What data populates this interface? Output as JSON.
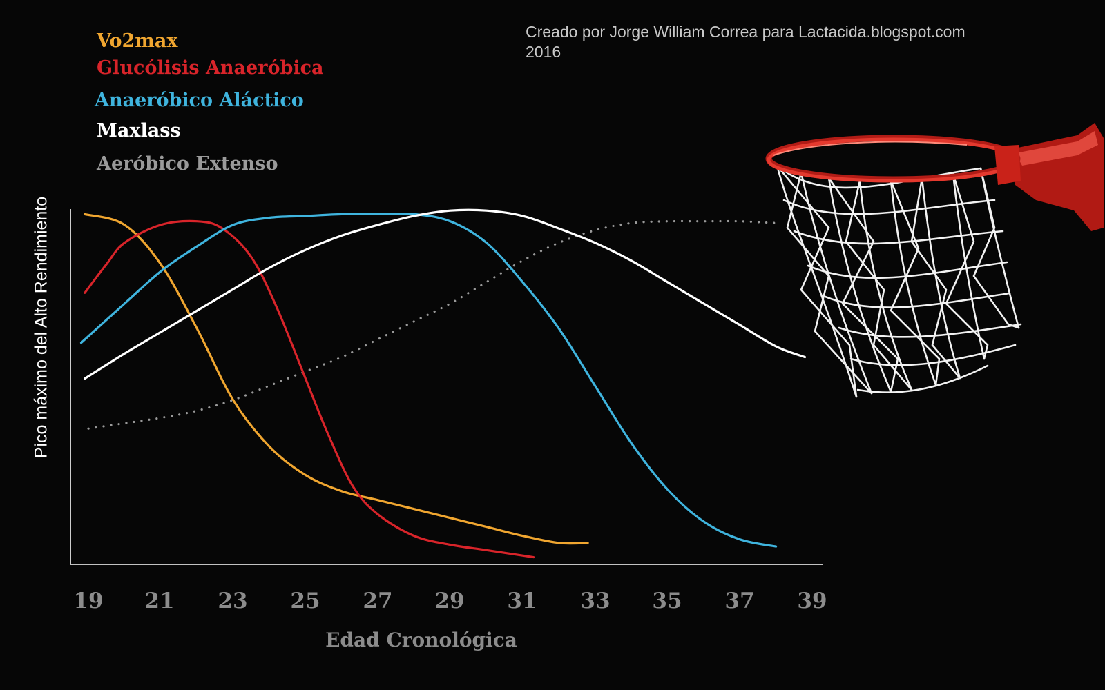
{
  "credit": {
    "line1": "Creado por  Jorge William Correa para Lactacida.blogspot.com",
    "line2": "2016"
  },
  "colors": {
    "background": "#060606",
    "vo2max": "#f0a630",
    "glucolisis": "#d8242a",
    "alactico": "#3fb4de",
    "maxlass": "#ffffff",
    "aerobico": "#9a9a9a",
    "axis": "#ffffff",
    "tick_text": "#8c8c8c"
  },
  "chart_data": {
    "type": "line",
    "xlabel": "Edad Cronológica",
    "ylabel": "Pico máximo del Alto Rendimiento",
    "x_ticks": [
      "19",
      "21",
      "23",
      "25",
      "27",
      "29",
      "31",
      "33",
      "35",
      "37",
      "39"
    ],
    "xlim": [
      18.5,
      39.5
    ],
    "ylim": [
      0,
      100
    ],
    "grid": false,
    "legend_position": "top-left",
    "series": [
      {
        "name": "Vo2max",
        "color_key": "vo2max",
        "style": "solid",
        "x": [
          18.9,
          20.0,
          21.0,
          22.0,
          23.0,
          24.0,
          25.0,
          26.0,
          27.0,
          28.0,
          29.0,
          30.0,
          31.0,
          32.0,
          32.8
        ],
        "y": [
          98,
          95,
          84,
          66,
          46,
          33,
          25,
          20.5,
          18,
          15.5,
          13,
          10.5,
          8,
          6,
          6
        ]
      },
      {
        "name": "Glucólisis Anaeróbica",
        "color_key": "glucolisis",
        "style": "solid",
        "x": [
          18.9,
          19.5,
          20.0,
          21.0,
          22.0,
          22.7,
          23.5,
          24.2,
          25.0,
          25.6,
          26.3,
          27.0,
          28.0,
          29.0,
          30.0,
          31.3
        ],
        "y": [
          76,
          84,
          90,
          95,
          96,
          94,
          86,
          72,
          52,
          37,
          22,
          14,
          8,
          5.5,
          4,
          2
        ]
      },
      {
        "name": "Anaeróbico Aláctico",
        "color_key": "alactico",
        "style": "solid",
        "x": [
          18.8,
          20.0,
          21.0,
          22.0,
          23.0,
          24.0,
          25.0,
          26.0,
          27.0,
          28.0,
          29.0,
          30.0,
          31.0,
          32.0,
          33.0,
          34.0,
          35.0,
          36.0,
          37.0,
          38.0
        ],
        "y": [
          62,
          73,
          82,
          89,
          95,
          97,
          97.5,
          98,
          98,
          98,
          96,
          90,
          79,
          66,
          50,
          34,
          21,
          12,
          7,
          5
        ]
      },
      {
        "name": "Maxlass",
        "color_key": "maxlass",
        "style": "solid",
        "x": [
          18.9,
          20.0,
          21.0,
          22.0,
          23.0,
          24.0,
          25.0,
          26.0,
          27.0,
          28.0,
          29.0,
          30.0,
          31.0,
          32.0,
          33.0,
          34.0,
          35.0,
          36.0,
          37.0,
          38.0,
          38.8
        ],
        "y": [
          52,
          59,
          65,
          71,
          77,
          83,
          88,
          92,
          95,
          97.5,
          99,
          99,
          97.5,
          94,
          90,
          85,
          79,
          73,
          67,
          61,
          58
        ]
      },
      {
        "name": "Aeróbico Extenso",
        "color_key": "aerobico",
        "style": "dotted",
        "x": [
          19.0,
          20.0,
          21.0,
          22.0,
          23.0,
          24.0,
          25.0,
          26.0,
          27.0,
          28.0,
          29.0,
          30.0,
          31.0,
          32.0,
          33.0,
          34.0,
          35.0,
          36.0,
          37.0,
          38.0
        ],
        "y": [
          38,
          39.5,
          41,
          43,
          46,
          50,
          54,
          58,
          63,
          68,
          73,
          79,
          85,
          90,
          93.5,
          95.5,
          96,
          96,
          96,
          95.5
        ]
      }
    ]
  }
}
